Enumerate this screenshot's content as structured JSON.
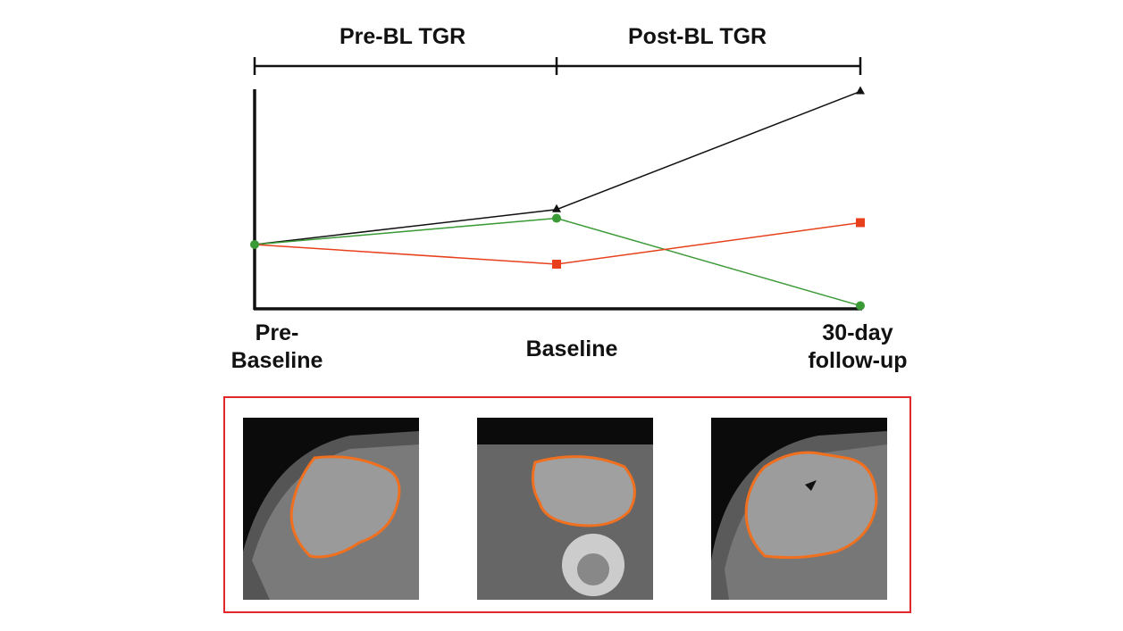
{
  "chart_data": {
    "type": "line",
    "categories": [
      "Pre-Baseline",
      "Baseline",
      "30-day follow-up"
    ],
    "category_labels": [
      [
        "Pre-",
        "Baseline"
      ],
      [
        "Baseline"
      ],
      [
        "30-day",
        "follow-up"
      ]
    ],
    "periods": [
      "Pre-BL TGR",
      "Post-BL TGR"
    ],
    "ylim": [
      0,
      100
    ],
    "series": [
      {
        "name": "black",
        "marker": "triangle",
        "color": "#111111",
        "values": [
          29,
          45,
          99
        ]
      },
      {
        "name": "green",
        "marker": "circle",
        "color": "#3a9a35",
        "values": [
          29,
          41,
          1
        ]
      },
      {
        "name": "red",
        "marker": "square",
        "color": "#e8401c",
        "values": [
          29,
          20,
          39
        ]
      }
    ]
  },
  "colors": {
    "panel_border": "#e0282a",
    "contour": "#f07020"
  }
}
